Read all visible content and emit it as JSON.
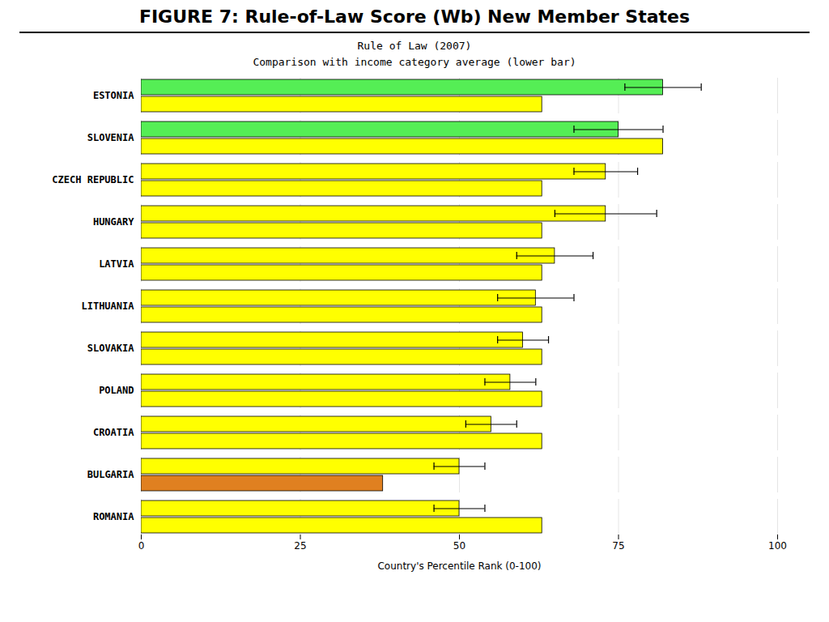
{
  "chart_data": {
    "type": "bar",
    "orientation": "horizontal",
    "title": "FIGURE 7: Rule-of-Law Score (Wb) New Member States",
    "subtitle": [
      "Rule of Law (2007)",
      "Comparison with income category average (lower bar)"
    ],
    "xlabel": "Country's Percentile Rank (0-100)",
    "categories": [
      "ESTONIA",
      "SLOVENIA",
      "CZECH REPUBLIC",
      "HUNGARY",
      "LATVIA",
      "LITHUANIA",
      "SLOVAKIA",
      "POLAND",
      "CROATIA",
      "BULGARIA",
      "ROMANIA"
    ],
    "series": [
      {
        "values": [
          82,
          75,
          73,
          73,
          65,
          62,
          60,
          58,
          55,
          50,
          50
        ],
        "errors": [
          6,
          7,
          5,
          8,
          6,
          6,
          4,
          4,
          4,
          4,
          4
        ],
        "colors": [
          "#55ee55",
          "#55ee55",
          "#ffff00",
          "#ffff00",
          "#ffff00",
          "#ffff00",
          "#ffff00",
          "#ffff00",
          "#ffff00",
          "#ffff00",
          "#ffff00"
        ]
      },
      {
        "values": [
          63,
          82,
          63,
          63,
          63,
          63,
          63,
          63,
          63,
          38,
          63
        ],
        "colors": [
          "#ffff00",
          "#ffff00",
          "#ffff00",
          "#ffff00",
          "#ffff00",
          "#ffff00",
          "#ffff00",
          "#ffff00",
          "#ffff00",
          "#e08020",
          "#ffff00"
        ]
      }
    ],
    "xlim": [
      0,
      100
    ],
    "xticks": [
      0,
      25,
      50,
      75,
      100
    ],
    "grid": true
  }
}
